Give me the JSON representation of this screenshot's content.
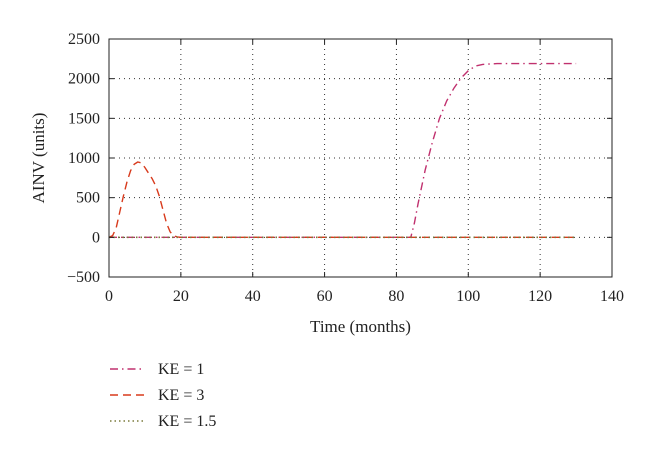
{
  "chart_data": {
    "type": "line",
    "title": "",
    "xlabel": "Time (months)",
    "ylabel": "AINV (units)",
    "xlim": [
      0,
      140
    ],
    "ylim": [
      -500,
      2500
    ],
    "xticks": [
      0,
      20,
      40,
      60,
      80,
      100,
      120,
      140
    ],
    "yticks": [
      -500,
      0,
      500,
      1000,
      1500,
      2000,
      2500
    ],
    "xtick_labels": [
      "0",
      "20",
      "40",
      "60",
      "80",
      "100",
      "120",
      "140"
    ],
    "ytick_labels": [
      "−500",
      "0",
      "500",
      "1000",
      "1500",
      "2000",
      "2500"
    ],
    "grid": true,
    "legend_position": "below",
    "series": [
      {
        "name": "KE = 1",
        "style": "dashdot",
        "color": "#c0306e",
        "x": [
          0,
          18,
          20,
          40,
          60,
          80,
          84,
          85,
          86,
          88,
          90,
          92,
          94,
          96,
          98,
          100,
          102,
          104,
          108,
          115,
          130
        ],
        "y": [
          0,
          0,
          0,
          0,
          0,
          0,
          0,
          180,
          420,
          850,
          1200,
          1500,
          1720,
          1880,
          2010,
          2100,
          2160,
          2180,
          2190,
          2190,
          2190
        ]
      },
      {
        "name": "KE = 3",
        "style": "dashed",
        "color": "#d83a1c",
        "x": [
          0,
          1,
          2,
          3,
          4,
          5,
          6,
          7,
          8,
          9,
          10,
          11,
          12,
          13,
          14,
          15,
          16,
          17,
          18,
          19,
          20,
          30,
          40,
          60,
          80,
          100,
          120,
          130
        ],
        "y": [
          0,
          20,
          120,
          320,
          520,
          700,
          840,
          920,
          950,
          940,
          880,
          810,
          740,
          650,
          520,
          350,
          180,
          70,
          20,
          5,
          0,
          0,
          0,
          0,
          0,
          0,
          0,
          0
        ]
      },
      {
        "name": "KE = 1.5",
        "style": "dotted",
        "color": "#7a7a3a",
        "x": [
          0,
          20,
          40,
          60,
          80,
          100,
          120,
          130
        ],
        "y": [
          0,
          0,
          0,
          0,
          0,
          0,
          0,
          0
        ]
      }
    ]
  }
}
